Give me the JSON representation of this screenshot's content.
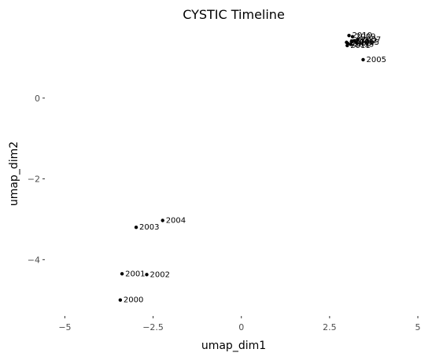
{
  "chart_data": {
    "type": "scatter",
    "title": "CYSTIC Timeline",
    "xlabel": "umap_dim1",
    "ylabel": "umap_dim2",
    "xlim": [
      -5.5,
      5.2
    ],
    "ylim": [
      -5.2,
      1.65
    ],
    "x_ticks": [
      -5,
      -2.5,
      0,
      2.5,
      5
    ],
    "x_tick_labels": [
      "−5",
      "−2.5",
      "0",
      "2.5",
      "5"
    ],
    "y_ticks": [
      0,
      -2,
      -4
    ],
    "y_tick_labels": [
      "0",
      "−2",
      "−4"
    ],
    "grid": false,
    "legend": false,
    "points": [
      {
        "label": "2000",
        "x": -3.43,
        "y": -5.0
      },
      {
        "label": "2001",
        "x": -3.38,
        "y": -4.35
      },
      {
        "label": "2002",
        "x": -2.68,
        "y": -4.37
      },
      {
        "label": "2003",
        "x": -2.98,
        "y": -3.2
      },
      {
        "label": "2004",
        "x": -2.23,
        "y": -3.03
      },
      {
        "label": "2005",
        "x": 3.45,
        "y": 0.95
      },
      {
        "label": "2006",
        "x": 3.12,
        "y": 1.4
      },
      {
        "label": "2007",
        "x": 3.3,
        "y": 1.45
      },
      {
        "label": "2008",
        "x": 3.02,
        "y": 1.35
      },
      {
        "label": "2009",
        "x": 3.15,
        "y": 1.52
      },
      {
        "label": "2010",
        "x": 3.05,
        "y": 1.55
      },
      {
        "label": "2011",
        "x": 3.0,
        "y": 1.3
      },
      {
        "label": "2012",
        "x": 3.2,
        "y": 1.42
      },
      {
        "label": "2013",
        "x": 3.1,
        "y": 1.33
      },
      {
        "label": "2014",
        "x": 2.98,
        "y": 1.38
      },
      {
        "label": "2015",
        "x": 3.25,
        "y": 1.38
      }
    ]
  }
}
